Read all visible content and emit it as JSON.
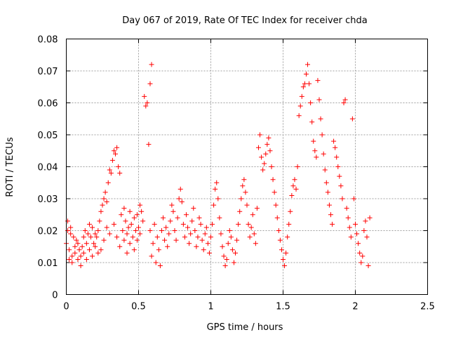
{
  "chart_data": {
    "type": "scatter",
    "title": "Day 067 of 2019, Rate Of TEC Index for receiver chda",
    "xlabel": "GPS time / hours",
    "ylabel": "ROTI / TECUs",
    "xlim": [
      0,
      2.5
    ],
    "ylim": [
      0,
      0.08
    ],
    "xticks": [
      0,
      0.5,
      1,
      1.5,
      2,
      2.5
    ],
    "xtick_labels": [
      "0",
      "0.5",
      "1",
      "1.5",
      "2",
      "2.5"
    ],
    "yticks": [
      0,
      0.01,
      0.02,
      0.03,
      0.04,
      0.05,
      0.06,
      0.07,
      0.08
    ],
    "ytick_labels": [
      "0",
      "0.01",
      "0.02",
      "0.03",
      "0.04",
      "0.05",
      "0.06",
      "0.07",
      "0.08"
    ],
    "grid": true,
    "marker": "+",
    "color": "#ff0000",
    "series": [
      {
        "name": "ROTI",
        "points": [
          [
            0.0,
            0.016
          ],
          [
            0.01,
            0.02
          ],
          [
            0.01,
            0.023
          ],
          [
            0.02,
            0.014
          ],
          [
            0.02,
            0.011
          ],
          [
            0.03,
            0.019
          ],
          [
            0.03,
            0.021
          ],
          [
            0.04,
            0.012
          ],
          [
            0.04,
            0.01
          ],
          [
            0.05,
            0.018
          ],
          [
            0.06,
            0.015
          ],
          [
            0.06,
            0.013
          ],
          [
            0.07,
            0.017
          ],
          [
            0.08,
            0.011
          ],
          [
            0.08,
            0.016
          ],
          [
            0.09,
            0.014
          ],
          [
            0.1,
            0.009
          ],
          [
            0.1,
            0.012
          ],
          [
            0.11,
            0.015
          ],
          [
            0.12,
            0.018
          ],
          [
            0.12,
            0.013
          ],
          [
            0.13,
            0.02
          ],
          [
            0.14,
            0.016
          ],
          [
            0.14,
            0.011
          ],
          [
            0.15,
            0.019
          ],
          [
            0.16,
            0.022
          ],
          [
            0.16,
            0.014
          ],
          [
            0.17,
            0.018
          ],
          [
            0.18,
            0.021
          ],
          [
            0.18,
            0.012
          ],
          [
            0.19,
            0.016
          ],
          [
            0.2,
            0.019
          ],
          [
            0.2,
            0.015
          ],
          [
            0.21,
            0.018
          ],
          [
            0.22,
            0.013
          ],
          [
            0.22,
            0.02
          ],
          [
            0.23,
            0.023
          ],
          [
            0.24,
            0.026
          ],
          [
            0.24,
            0.014
          ],
          [
            0.25,
            0.028
          ],
          [
            0.26,
            0.03
          ],
          [
            0.26,
            0.017
          ],
          [
            0.27,
            0.032
          ],
          [
            0.28,
            0.029
          ],
          [
            0.28,
            0.021
          ],
          [
            0.29,
            0.035
          ],
          [
            0.3,
            0.039
          ],
          [
            0.3,
            0.019
          ],
          [
            0.31,
            0.038
          ],
          [
            0.32,
            0.042
          ],
          [
            0.33,
            0.045
          ],
          [
            0.33,
            0.022
          ],
          [
            0.34,
            0.044
          ],
          [
            0.35,
            0.046
          ],
          [
            0.35,
            0.018
          ],
          [
            0.36,
            0.04
          ],
          [
            0.37,
            0.038
          ],
          [
            0.37,
            0.015
          ],
          [
            0.38,
            0.025
          ],
          [
            0.39,
            0.02
          ],
          [
            0.4,
            0.027
          ],
          [
            0.4,
            0.017
          ],
          [
            0.41,
            0.023
          ],
          [
            0.42,
            0.019
          ],
          [
            0.42,
            0.013
          ],
          [
            0.43,
            0.021
          ],
          [
            0.44,
            0.026
          ],
          [
            0.44,
            0.016
          ],
          [
            0.45,
            0.022
          ],
          [
            0.46,
            0.018
          ],
          [
            0.47,
            0.024
          ],
          [
            0.47,
            0.014
          ],
          [
            0.48,
            0.02
          ],
          [
            0.49,
            0.017
          ],
          [
            0.49,
            0.025
          ],
          [
            0.5,
            0.021
          ],
          [
            0.51,
            0.028
          ],
          [
            0.51,
            0.019
          ],
          [
            0.52,
            0.026
          ],
          [
            0.53,
            0.023
          ],
          [
            0.54,
            0.062
          ],
          [
            0.55,
            0.059
          ],
          [
            0.56,
            0.06
          ],
          [
            0.57,
            0.047
          ],
          [
            0.58,
            0.066
          ],
          [
            0.59,
            0.072
          ],
          [
            0.58,
            0.02
          ],
          [
            0.59,
            0.012
          ],
          [
            0.6,
            0.016
          ],
          [
            0.61,
            0.022
          ],
          [
            0.62,
            0.01
          ],
          [
            0.63,
            0.018
          ],
          [
            0.64,
            0.014
          ],
          [
            0.65,
            0.009
          ],
          [
            0.66,
            0.02
          ],
          [
            0.67,
            0.024
          ],
          [
            0.68,
            0.017
          ],
          [
            0.69,
            0.021
          ],
          [
            0.7,
            0.015
          ],
          [
            0.71,
            0.019
          ],
          [
            0.72,
            0.023
          ],
          [
            0.73,
            0.028
          ],
          [
            0.74,
            0.026
          ],
          [
            0.75,
            0.02
          ],
          [
            0.76,
            0.017
          ],
          [
            0.77,
            0.024
          ],
          [
            0.78,
            0.03
          ],
          [
            0.79,
            0.033
          ],
          [
            0.8,
            0.029
          ],
          [
            0.81,
            0.022
          ],
          [
            0.82,
            0.018
          ],
          [
            0.83,
            0.025
          ],
          [
            0.84,
            0.021
          ],
          [
            0.85,
            0.016
          ],
          [
            0.86,
            0.019
          ],
          [
            0.87,
            0.023
          ],
          [
            0.88,
            0.027
          ],
          [
            0.89,
            0.02
          ],
          [
            0.9,
            0.015
          ],
          [
            0.91,
            0.018
          ],
          [
            0.92,
            0.024
          ],
          [
            0.93,
            0.022
          ],
          [
            0.94,
            0.017
          ],
          [
            0.95,
            0.014
          ],
          [
            0.96,
            0.019
          ],
          [
            0.97,
            0.021
          ],
          [
            0.98,
            0.016
          ],
          [
            0.99,
            0.013
          ],
          [
            1.0,
            0.018
          ],
          [
            1.01,
            0.022
          ],
          [
            1.02,
            0.028
          ],
          [
            1.03,
            0.033
          ],
          [
            1.04,
            0.035
          ],
          [
            1.05,
            0.03
          ],
          [
            1.06,
            0.024
          ],
          [
            1.07,
            0.019
          ],
          [
            1.08,
            0.015
          ],
          [
            1.09,
            0.012
          ],
          [
            1.1,
            0.009
          ],
          [
            1.11,
            0.011
          ],
          [
            1.12,
            0.016
          ],
          [
            1.13,
            0.02
          ],
          [
            1.14,
            0.018
          ],
          [
            1.15,
            0.014
          ],
          [
            1.16,
            0.01
          ],
          [
            1.17,
            0.013
          ],
          [
            1.18,
            0.017
          ],
          [
            1.19,
            0.022
          ],
          [
            1.2,
            0.026
          ],
          [
            1.21,
            0.03
          ],
          [
            1.22,
            0.034
          ],
          [
            1.23,
            0.036
          ],
          [
            1.24,
            0.032
          ],
          [
            1.25,
            0.028
          ],
          [
            1.26,
            0.022
          ],
          [
            1.27,
            0.018
          ],
          [
            1.28,
            0.021
          ],
          [
            1.29,
            0.025
          ],
          [
            1.3,
            0.019
          ],
          [
            1.31,
            0.016
          ],
          [
            1.32,
            0.027
          ],
          [
            1.33,
            0.046
          ],
          [
            1.34,
            0.05
          ],
          [
            1.35,
            0.043
          ],
          [
            1.36,
            0.039
          ],
          [
            1.37,
            0.041
          ],
          [
            1.38,
            0.044
          ],
          [
            1.39,
            0.047
          ],
          [
            1.4,
            0.049
          ],
          [
            1.41,
            0.045
          ],
          [
            1.42,
            0.04
          ],
          [
            1.43,
            0.036
          ],
          [
            1.44,
            0.032
          ],
          [
            1.45,
            0.028
          ],
          [
            1.46,
            0.024
          ],
          [
            1.47,
            0.02
          ],
          [
            1.48,
            0.017
          ],
          [
            1.49,
            0.014
          ],
          [
            1.5,
            0.011
          ],
          [
            1.51,
            0.009
          ],
          [
            1.52,
            0.013
          ],
          [
            1.53,
            0.018
          ],
          [
            1.54,
            0.022
          ],
          [
            1.55,
            0.026
          ],
          [
            1.56,
            0.031
          ],
          [
            1.57,
            0.034
          ],
          [
            1.58,
            0.036
          ],
          [
            1.59,
            0.033
          ],
          [
            1.6,
            0.04
          ],
          [
            1.61,
            0.056
          ],
          [
            1.62,
            0.059
          ],
          [
            1.63,
            0.062
          ],
          [
            1.64,
            0.065
          ],
          [
            1.65,
            0.066
          ],
          [
            1.66,
            0.069
          ],
          [
            1.67,
            0.072
          ],
          [
            1.68,
            0.066
          ],
          [
            1.69,
            0.06
          ],
          [
            1.7,
            0.054
          ],
          [
            1.71,
            0.048
          ],
          [
            1.72,
            0.045
          ],
          [
            1.73,
            0.043
          ],
          [
            1.74,
            0.067
          ],
          [
            1.75,
            0.061
          ],
          [
            1.76,
            0.055
          ],
          [
            1.77,
            0.05
          ],
          [
            1.78,
            0.044
          ],
          [
            1.79,
            0.039
          ],
          [
            1.8,
            0.035
          ],
          [
            1.81,
            0.032
          ],
          [
            1.82,
            0.028
          ],
          [
            1.83,
            0.025
          ],
          [
            1.84,
            0.022
          ],
          [
            1.85,
            0.048
          ],
          [
            1.86,
            0.046
          ],
          [
            1.87,
            0.043
          ],
          [
            1.88,
            0.04
          ],
          [
            1.89,
            0.037
          ],
          [
            1.9,
            0.034
          ],
          [
            1.91,
            0.03
          ],
          [
            1.92,
            0.06
          ],
          [
            1.93,
            0.061
          ],
          [
            1.94,
            0.027
          ],
          [
            1.95,
            0.024
          ],
          [
            1.96,
            0.021
          ],
          [
            1.97,
            0.018
          ],
          [
            1.98,
            0.055
          ],
          [
            1.99,
            0.03
          ],
          [
            2.0,
            0.022
          ],
          [
            2.01,
            0.019
          ],
          [
            2.02,
            0.016
          ],
          [
            2.03,
            0.013
          ],
          [
            2.04,
            0.01
          ],
          [
            2.05,
            0.012
          ],
          [
            2.06,
            0.02
          ],
          [
            2.07,
            0.023
          ],
          [
            2.08,
            0.018
          ],
          [
            2.09,
            0.009
          ],
          [
            2.1,
            0.024
          ]
        ]
      }
    ]
  }
}
